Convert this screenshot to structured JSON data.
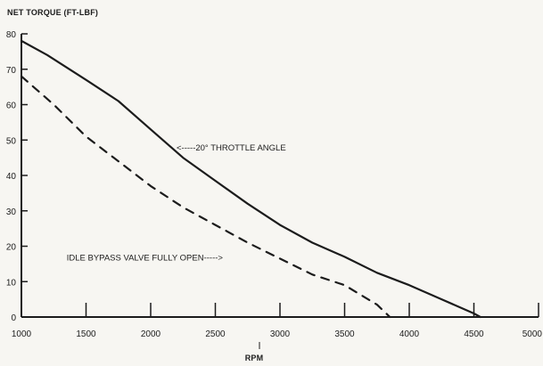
{
  "chart_data": {
    "type": "line",
    "title": "",
    "ylabel": "NET TORQUE (FT-LBF)",
    "xlabel": "RPM",
    "xlim": [
      1000,
      5000
    ],
    "ylim": [
      0,
      80
    ],
    "x_ticks": [
      "1000",
      "1500",
      "2000",
      "2500",
      "3000",
      "3500",
      "4000",
      "4500",
      "5000"
    ],
    "y_ticks": [
      "0",
      "10",
      "20",
      "30",
      "40",
      "50",
      "60",
      "70",
      "80"
    ],
    "grid": false,
    "series": [
      {
        "name": "20° THROTTLE ANGLE",
        "style": "solid",
        "color": "#1c1c1c",
        "x": [
          1000,
          1200,
          1500,
          1750,
          2000,
          2250,
          2500,
          2750,
          3000,
          3250,
          3500,
          3750,
          4000,
          4250,
          4500,
          4550
        ],
        "y": [
          78,
          74,
          67,
          61,
          53,
          45,
          38.5,
          32,
          26,
          21,
          17,
          12.5,
          9,
          5,
          1,
          0
        ]
      },
      {
        "name": "IDLE BYPASS VALVE FULLY OPEN",
        "style": "dashed",
        "color": "#1c1c1c",
        "x": [
          1000,
          1250,
          1500,
          1750,
          2000,
          2250,
          2500,
          2750,
          3000,
          3250,
          3500,
          3750,
          3850
        ],
        "y": [
          68,
          60,
          51,
          44,
          37,
          31,
          26,
          21,
          16.5,
          12,
          9,
          3.5,
          0
        ]
      }
    ],
    "annotations": [
      {
        "text": "<-----20° THROTTLE ANGLE",
        "x": 2200,
        "y": 47
      },
      {
        "text": "IDLE BYPASS VALVE FULLY OPEN----->",
        "x": 1350,
        "y": 16
      }
    ]
  }
}
